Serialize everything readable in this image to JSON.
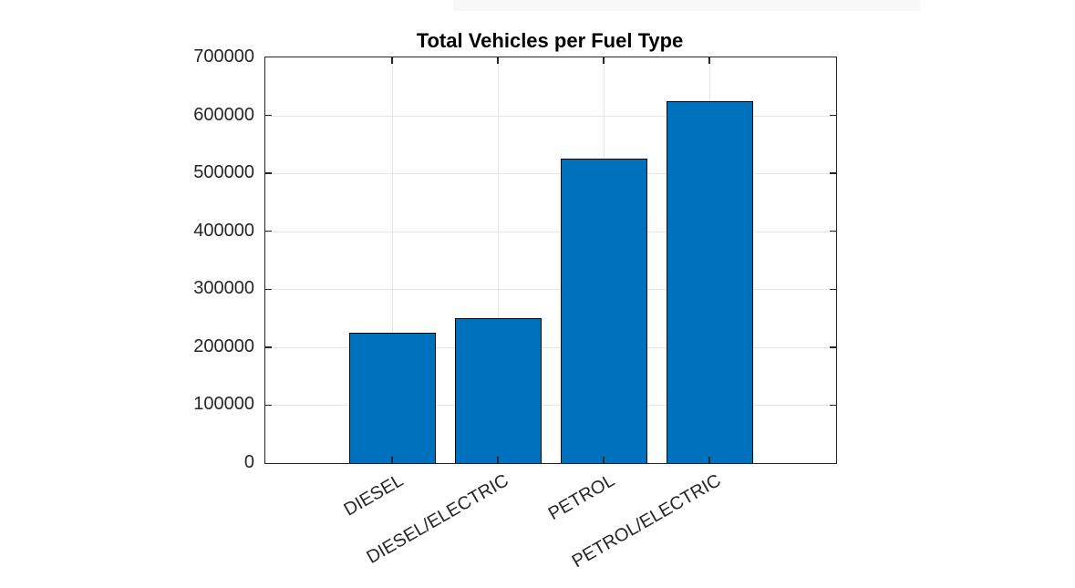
{
  "figure": {
    "background_color": "#ffffff"
  },
  "chart_data": {
    "type": "bar",
    "title": "Total Vehicles per Fuel Type",
    "categories": [
      "DIESEL",
      "DIESEL/ELECTRIC",
      "PETROL",
      "PETROL/ELECTRIC"
    ],
    "values": [
      225000,
      250000,
      525000,
      625000
    ],
    "xlabel": "",
    "ylabel": "",
    "ylim": [
      0,
      700000
    ],
    "ytick_step": 100000,
    "ytick_labels": [
      "0",
      "100000",
      "200000",
      "300000",
      "400000",
      "500000",
      "600000",
      "700000"
    ],
    "xtick_rotation_deg": 30,
    "grid": true,
    "legend": "none",
    "colors": {
      "bar_fill": "#0072BD",
      "bar_edge": "#000000",
      "axis_box": "#262626",
      "grid_line": "#e6e6e6",
      "title_text": "#000000",
      "tick_text": "#262626"
    }
  }
}
